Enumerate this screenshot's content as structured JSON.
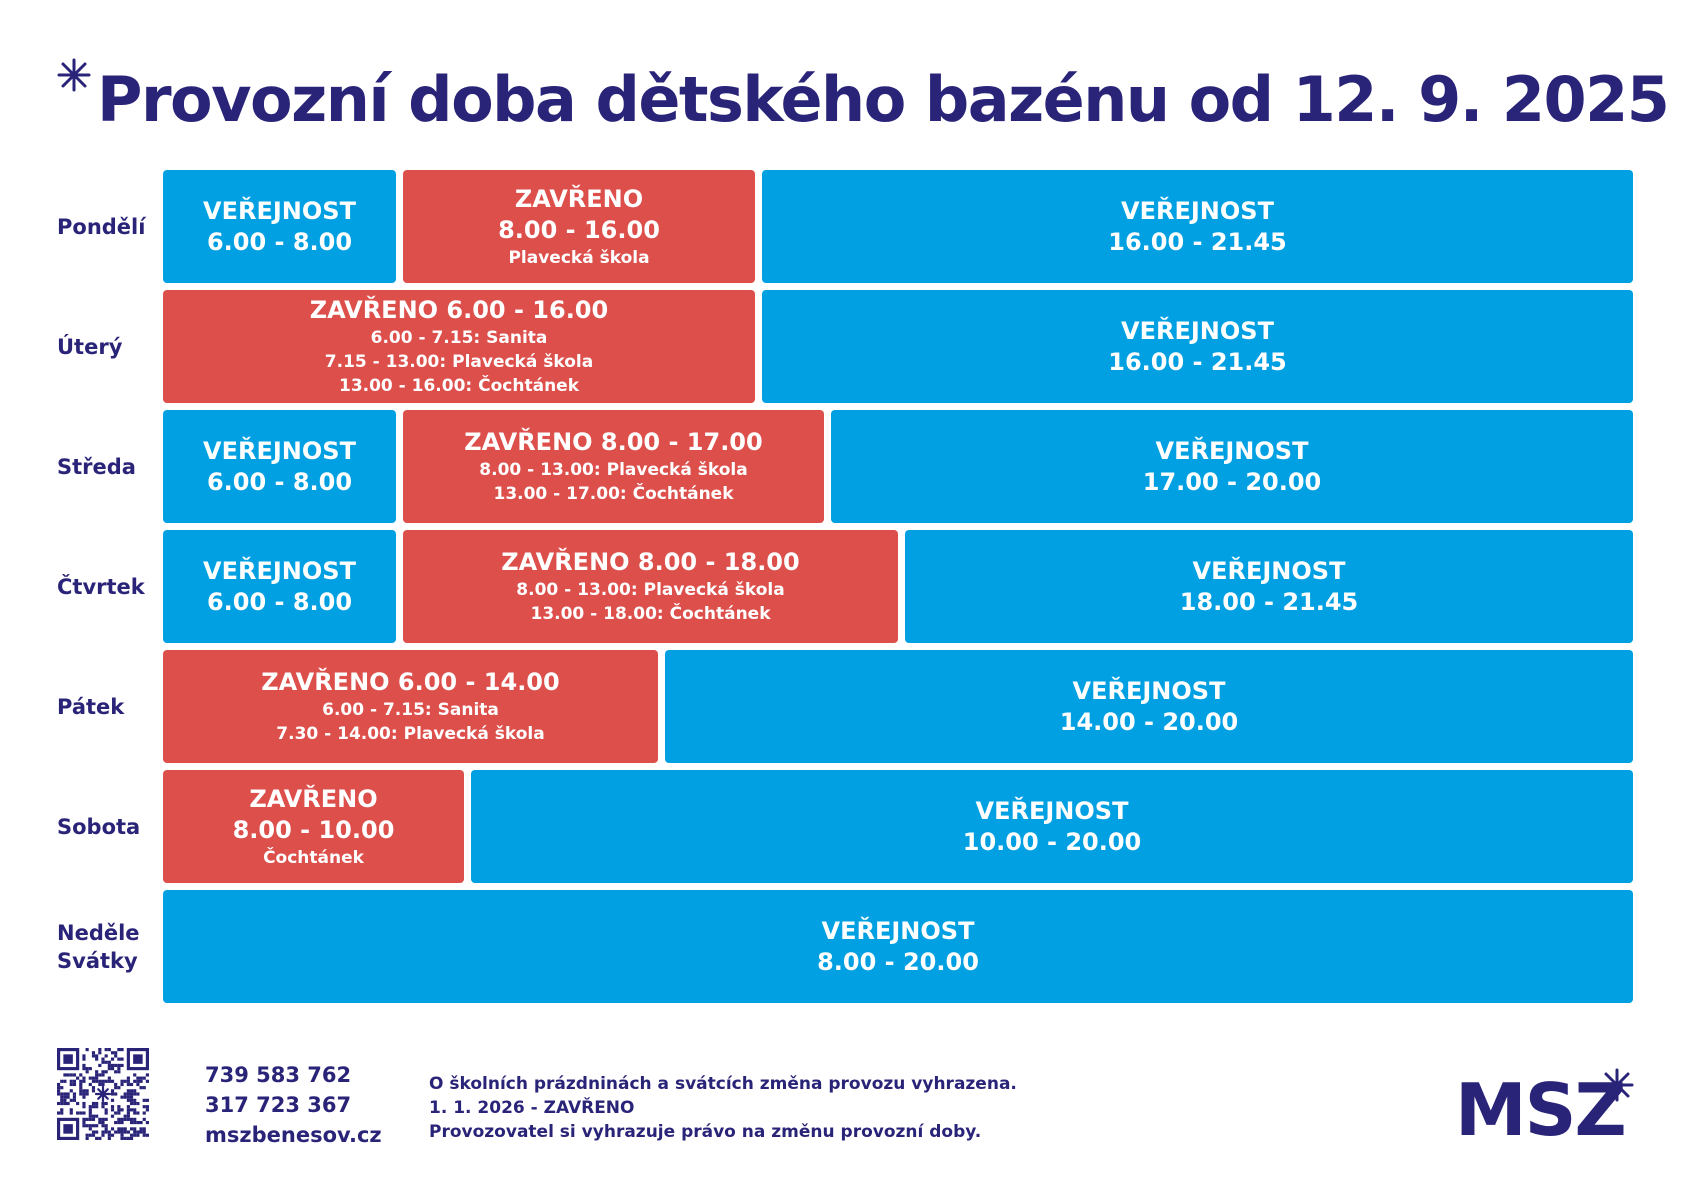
{
  "title": "Provozní doba dětského bazénu od 12. 9. 2025",
  "colors": {
    "navy": "#2a2479",
    "open": "#00a0e3",
    "closed": "#dd4f4b"
  },
  "days": [
    {
      "label": "Pondělí",
      "blocks": [
        {
          "kind": "open",
          "main": [
            "VEŘEJNOST",
            "6.00 - 8.00"
          ],
          "sub": []
        },
        {
          "kind": "closed",
          "main": [
            "ZAVŘENO",
            "8.00 - 16.00"
          ],
          "sub": [
            "Plavecká škola"
          ]
        },
        {
          "kind": "open",
          "main": [
            "VEŘEJNOST",
            "16.00 - 21.45"
          ],
          "sub": []
        }
      ]
    },
    {
      "label": "Úterý",
      "blocks": [
        {
          "kind": "closed",
          "main": [
            "ZAVŘENO 6.00 - 16.00"
          ],
          "sub": [
            "6.00 - 7.15: Sanita",
            "7.15 - 13.00: Plavecká škola",
            "13.00 - 16.00: Čochtánek"
          ]
        },
        {
          "kind": "open",
          "main": [
            "VEŘEJNOST",
            "16.00 - 21.45"
          ],
          "sub": []
        }
      ]
    },
    {
      "label": "Středa",
      "blocks": [
        {
          "kind": "open",
          "main": [
            "VEŘEJNOST",
            "6.00 - 8.00"
          ],
          "sub": []
        },
        {
          "kind": "closed",
          "main": [
            "ZAVŘENO 8.00 - 17.00"
          ],
          "sub": [
            "8.00 - 13.00: Plavecká škola",
            "13.00 - 17.00: Čochtánek"
          ]
        },
        {
          "kind": "open",
          "main": [
            "VEŘEJNOST",
            "17.00 - 20.00"
          ],
          "sub": []
        }
      ]
    },
    {
      "label": "Čtvrtek",
      "blocks": [
        {
          "kind": "open",
          "main": [
            "VEŘEJNOST",
            "6.00 - 8.00"
          ],
          "sub": []
        },
        {
          "kind": "closed",
          "main": [
            "ZAVŘENO 8.00 - 18.00"
          ],
          "sub": [
            "8.00 - 13.00: Plavecká škola",
            "13.00 - 18.00: Čochtánek"
          ]
        },
        {
          "kind": "open",
          "main": [
            "VEŘEJNOST",
            "18.00 - 21.45"
          ],
          "sub": []
        }
      ]
    },
    {
      "label": "Pátek",
      "blocks": [
        {
          "kind": "closed",
          "main": [
            "ZAVŘENO 6.00 - 14.00"
          ],
          "sub": [
            "6.00 - 7.15: Sanita",
            "7.30 - 14.00: Plavecká škola"
          ]
        },
        {
          "kind": "open",
          "main": [
            "VEŘEJNOST",
            "14.00 - 20.00"
          ],
          "sub": []
        }
      ]
    },
    {
      "label": "Sobota",
      "blocks": [
        {
          "kind": "closed",
          "main": [
            "ZAVŘENO",
            "8.00 - 10.00"
          ],
          "sub": [
            "Čochtánek"
          ]
        },
        {
          "kind": "open",
          "main": [
            "VEŘEJNOST",
            "10.00 - 20.00"
          ],
          "sub": []
        }
      ]
    },
    {
      "label": "Neděle\nSvátky",
      "blocks": [
        {
          "kind": "open",
          "main": [
            "VEŘEJNOST",
            "8.00 - 20.00"
          ],
          "sub": []
        }
      ]
    }
  ],
  "contacts": [
    "739 583 762",
    "317 723 367",
    "mszbenesov.cz"
  ],
  "notes": [
    "O školních prázdninách a svátcích změna provozu vyhrazena.",
    "1. 1. 2026 - ZAVŘENO",
    "Provozovatel si vyhrazuje právo na změnu provozní doby."
  ],
  "logo": "MSZ",
  "icons": {
    "title_star": "asterisk-star-icon",
    "qr": "qr-code-icon",
    "logo_star": "asterisk-star-icon"
  }
}
